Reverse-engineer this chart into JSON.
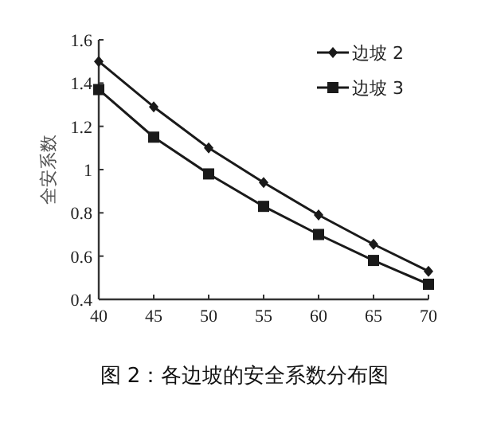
{
  "chart_data": {
    "type": "line",
    "ylabel": "全安系数",
    "annotations": [
      "图 2：各边坡的安全系数分布图"
    ],
    "x": [
      40,
      45,
      50,
      55,
      60,
      65,
      70
    ],
    "series": [
      {
        "name": "边坡 2",
        "color": "#1a1a1a",
        "marker": "diamond",
        "values": [
          1.5,
          1.29,
          1.1,
          0.94,
          0.79,
          0.655,
          0.53
        ]
      },
      {
        "name": "边坡 3",
        "color": "#1a1a1a",
        "marker": "square",
        "values": [
          1.37,
          1.15,
          0.98,
          0.83,
          0.7,
          0.58,
          0.47
        ]
      }
    ],
    "xlim": [
      40,
      70
    ],
    "xticks": [
      40,
      45,
      50,
      55,
      60,
      65,
      70
    ],
    "ylim": [
      0.4,
      1.6
    ],
    "yticks": [
      0.4,
      0.6,
      0.8,
      1,
      1.2,
      1.4,
      1.6
    ],
    "legend": "top right",
    "grid": false,
    "line_style": "solid"
  }
}
